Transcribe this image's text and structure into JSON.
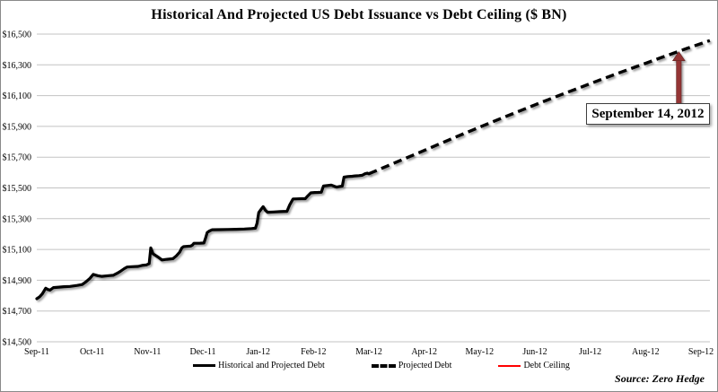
{
  "chart_data": {
    "type": "line",
    "title": "Historical And Projected US Debt Issuance vs Debt Ceiling ($ BN)",
    "xlabel": "",
    "ylabel": "",
    "ylim": [
      14500,
      16500
    ],
    "y_ticks": [
      14500,
      14700,
      14900,
      15100,
      15300,
      15500,
      15700,
      15900,
      16100,
      16300,
      16500
    ],
    "y_tick_labels": [
      "$14,500",
      "$14,700",
      "$14,900",
      "$15,100",
      "$15,300",
      "$15,500",
      "$15,700",
      "$15,900",
      "$16,100",
      "$16,300",
      "$16,500"
    ],
    "x_tick_labels": [
      "Sep-11",
      "Oct-11",
      "Nov-11",
      "Dec-11",
      "Jan-12",
      "Feb-12",
      "Mar-12",
      "Apr-12",
      "May-12",
      "Jun-12",
      "Jul-12",
      "Aug-12",
      "Sep-12"
    ],
    "grid": true,
    "legend_position": "bottom",
    "series": [
      {
        "name": "Historical and Projected Debt",
        "style": "solid",
        "color": "#000000",
        "points": [
          [
            0.0,
            14780
          ],
          [
            0.05,
            14792
          ],
          [
            0.1,
            14812
          ],
          [
            0.16,
            14848
          ],
          [
            0.2,
            14840
          ],
          [
            0.24,
            14836
          ],
          [
            0.3,
            14852
          ],
          [
            0.4,
            14855
          ],
          [
            0.49,
            14858
          ],
          [
            0.6,
            14860
          ],
          [
            0.73,
            14866
          ],
          [
            0.82,
            14872
          ],
          [
            0.89,
            14890
          ],
          [
            0.96,
            14912
          ],
          [
            1.02,
            14938
          ],
          [
            1.1,
            14930
          ],
          [
            1.17,
            14925
          ],
          [
            1.3,
            14930
          ],
          [
            1.38,
            14932
          ],
          [
            1.45,
            14945
          ],
          [
            1.51,
            14958
          ],
          [
            1.58,
            14975
          ],
          [
            1.63,
            14986
          ],
          [
            1.72,
            14988
          ],
          [
            1.83,
            14990
          ],
          [
            1.9,
            14996
          ],
          [
            1.98,
            15000
          ],
          [
            2.03,
            15008
          ],
          [
            2.06,
            15110
          ],
          [
            2.1,
            15072
          ],
          [
            2.14,
            15062
          ],
          [
            2.2,
            15048
          ],
          [
            2.26,
            15032
          ],
          [
            2.35,
            15036
          ],
          [
            2.46,
            15040
          ],
          [
            2.52,
            15058
          ],
          [
            2.58,
            15082
          ],
          [
            2.62,
            15110
          ],
          [
            2.65,
            15118
          ],
          [
            2.7,
            15120
          ],
          [
            2.78,
            15122
          ],
          [
            2.81,
            15128
          ],
          [
            2.84,
            15140
          ],
          [
            2.95,
            15141
          ],
          [
            3.02,
            15142
          ],
          [
            3.05,
            15175
          ],
          [
            3.08,
            15210
          ],
          [
            3.12,
            15220
          ],
          [
            3.17,
            15228
          ],
          [
            3.3,
            15229
          ],
          [
            3.45,
            15230
          ],
          [
            3.6,
            15231
          ],
          [
            3.75,
            15233
          ],
          [
            3.88,
            15236
          ],
          [
            3.95,
            15238
          ],
          [
            3.98,
            15270
          ],
          [
            4.01,
            15340
          ],
          [
            4.05,
            15360
          ],
          [
            4.09,
            15378
          ],
          [
            4.13,
            15355
          ],
          [
            4.17,
            15342
          ],
          [
            4.28,
            15344
          ],
          [
            4.4,
            15346
          ],
          [
            4.52,
            15348
          ],
          [
            4.57,
            15390
          ],
          [
            4.63,
            15428
          ],
          [
            4.7,
            15429
          ],
          [
            4.78,
            15430
          ],
          [
            4.85,
            15430
          ],
          [
            4.9,
            15450
          ],
          [
            4.95,
            15468
          ],
          [
            5.02,
            15470
          ],
          [
            5.08,
            15471
          ],
          [
            5.14,
            15472
          ],
          [
            5.18,
            15512
          ],
          [
            5.25,
            15515
          ],
          [
            5.32,
            15518
          ],
          [
            5.38,
            15510
          ],
          [
            5.42,
            15505
          ],
          [
            5.48,
            15510
          ],
          [
            5.52,
            15512
          ],
          [
            5.55,
            15570
          ],
          [
            5.62,
            15574
          ],
          [
            5.7,
            15576
          ],
          [
            5.75,
            15578
          ],
          [
            5.82,
            15580
          ],
          [
            5.88,
            15582
          ],
          [
            5.93,
            15592
          ],
          [
            5.97,
            15596
          ],
          [
            6.0,
            15592
          ]
        ]
      },
      {
        "name": "Projected Debt",
        "style": "dashed",
        "color": "#000000",
        "points": [
          [
            6.0,
            15592
          ],
          [
            6.25,
            15630
          ],
          [
            6.5,
            15668
          ],
          [
            6.75,
            15706
          ],
          [
            7.0,
            15744
          ],
          [
            7.25,
            15782
          ],
          [
            7.5,
            15820
          ],
          [
            7.75,
            15858
          ],
          [
            8.0,
            15895
          ],
          [
            8.25,
            15932
          ],
          [
            8.5,
            15968
          ],
          [
            8.75,
            16004
          ],
          [
            9.0,
            16040
          ],
          [
            9.25,
            16075
          ],
          [
            9.5,
            16110
          ],
          [
            9.75,
            16144
          ],
          [
            10.0,
            16178
          ],
          [
            10.25,
            16212
          ],
          [
            10.5,
            16245
          ],
          [
            10.75,
            16278
          ],
          [
            11.0,
            16310
          ],
          [
            11.25,
            16343
          ],
          [
            11.5,
            16375
          ],
          [
            11.75,
            16407
          ],
          [
            12.0,
            16438
          ],
          [
            12.16,
            16458
          ]
        ]
      },
      {
        "name": "Debt Ceiling",
        "style": "horizontal-line",
        "color": "#FF0000",
        "value": 16394
      }
    ],
    "annotation": {
      "label": "September 14, 2012",
      "x_month": 11.6,
      "points_to_value": 16394,
      "arrow_color": "#943634"
    }
  },
  "legend": {
    "items": [
      {
        "label": "Historical and Projected Debt",
        "swatch": "solid-black-line"
      },
      {
        "label": "Projected Debt",
        "swatch": "dashed-black-line"
      },
      {
        "label": "Debt Ceiling",
        "swatch": "red-line"
      }
    ]
  },
  "source": {
    "text": "Source: Zero Hedge"
  }
}
